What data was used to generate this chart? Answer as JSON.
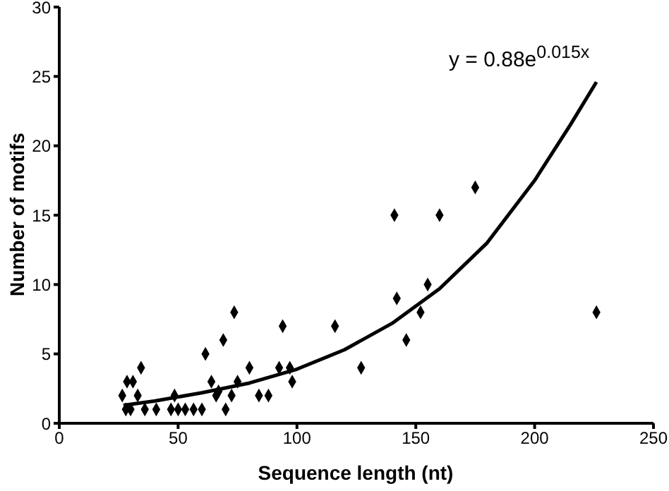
{
  "chart_data": {
    "type": "scatter",
    "xlabel": "Sequence length (nt)",
    "ylabel": "Number of motifs",
    "annotations": [
      "y = 0.88e$^{0.015x}$"
    ],
    "xlim": [
      0,
      250
    ],
    "xticks": [
      0,
      50,
      100,
      150,
      200,
      250
    ],
    "ylim": [
      0,
      30
    ],
    "yticks": [
      0,
      5,
      10,
      15,
      20,
      25,
      30
    ],
    "grid": false,
    "legend": false,
    "series": [
      {
        "type": "scatter",
        "color": "#000000",
        "marker": "diamond",
        "x": [
          26.5,
          28,
          28.5,
          30,
          31,
          33,
          34.4,
          36,
          40.8,
          47,
          48.5,
          50,
          53,
          56.5,
          60,
          61.5,
          64,
          66,
          67,
          69,
          70,
          72.5,
          73.6,
          75,
          80,
          84,
          88,
          92.5,
          94,
          97,
          98,
          116,
          127,
          141,
          142,
          146,
          152,
          155,
          160,
          175,
          226
        ],
        "values": [
          2,
          1,
          3,
          1,
          3,
          2,
          4,
          1,
          1,
          1,
          2,
          1,
          1,
          1,
          1,
          5,
          3,
          2,
          2.3,
          6,
          1,
          2,
          8,
          3,
          4,
          2,
          2,
          4,
          7,
          4,
          3,
          7,
          4,
          15,
          9,
          6,
          8,
          10,
          15,
          17,
          8
        ]
      },
      {
        "type": "line",
        "color": "#000000",
        "marker": "none",
        "x": [
          27,
          40,
          60,
          80,
          100,
          120,
          140,
          160,
          180,
          200,
          215,
          226
        ],
        "values": [
          1.3,
          1.6,
          2.2,
          2.9,
          3.9,
          5.3,
          7.2,
          9.7,
          13,
          17.5,
          21.5,
          24.6
        ]
      }
    ]
  }
}
